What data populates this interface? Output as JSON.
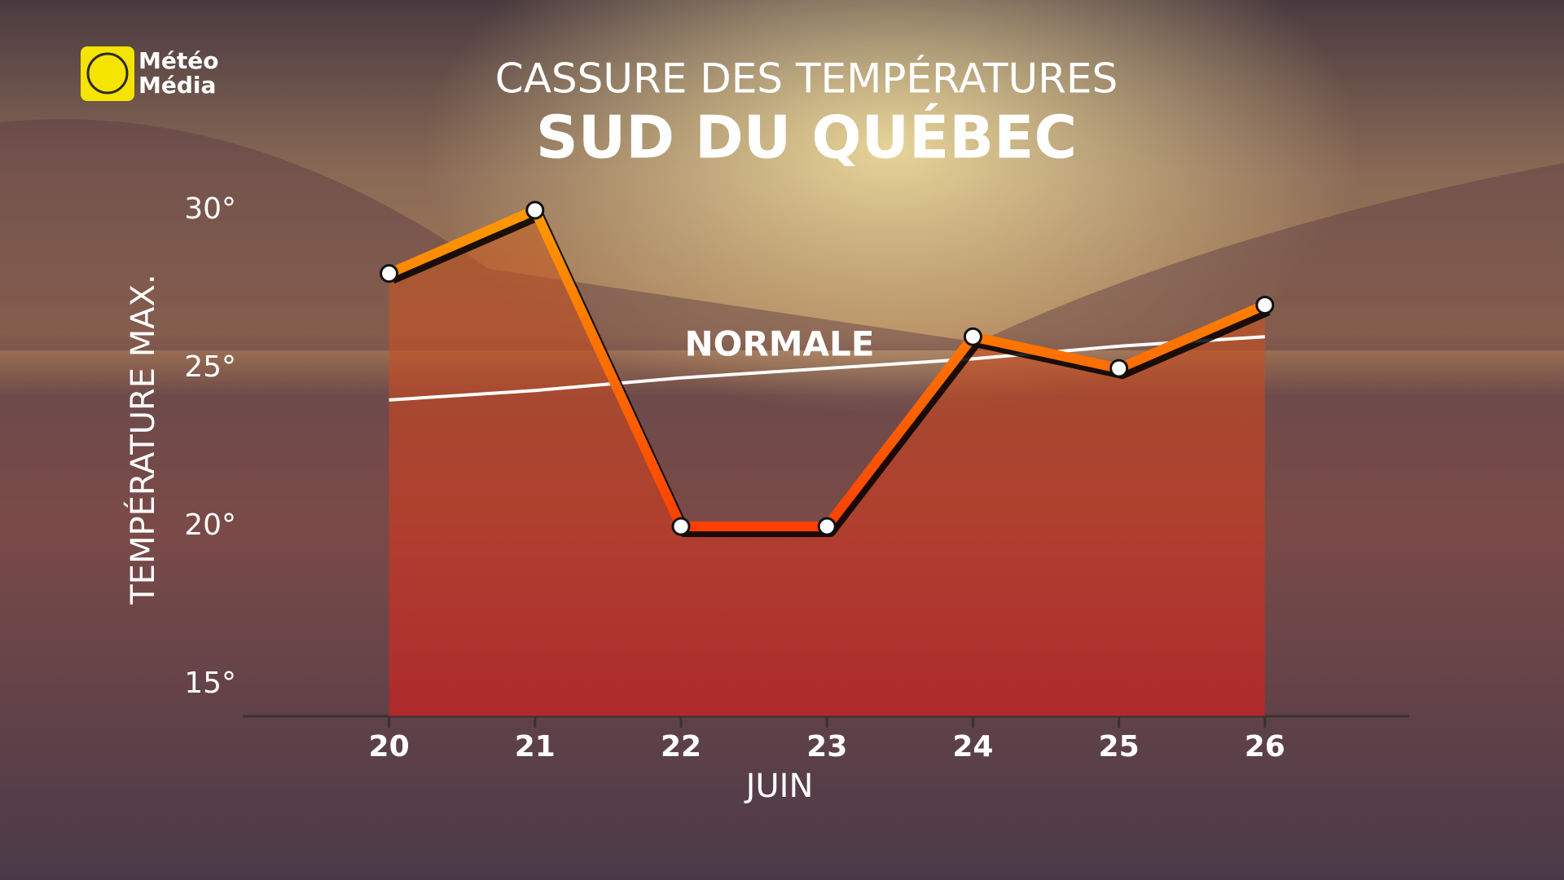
{
  "logo": {
    "line1": "Météo",
    "line2": "Média"
  },
  "chart_data": {
    "type": "line",
    "title": "CASSURE DES TEMPÉRATURES",
    "subtitle": "SUD DU QUÉBEC",
    "ylabel": "TEMPÉRATURE MAX.",
    "xlabel": "JUIN",
    "categories": [
      "20",
      "21",
      "22",
      "23",
      "24",
      "25",
      "26"
    ],
    "series": [
      {
        "name": "NORMALE",
        "color": "#ffffff",
        "values": [
          24,
          24.3,
          24.7,
          25,
          25.3,
          25.7,
          26
        ]
      },
      {
        "color": "#ff7a00",
        "values": [
          28,
          30,
          20,
          20,
          26,
          25,
          27
        ]
      }
    ],
    "ylim": [
      14,
      30
    ],
    "yticks": [
      {
        "value": 15,
        "label": "15°"
      },
      {
        "value": 20,
        "label": "20°"
      },
      {
        "value": 25,
        "label": "25°"
      },
      {
        "value": 30,
        "label": "30°"
      }
    ]
  }
}
